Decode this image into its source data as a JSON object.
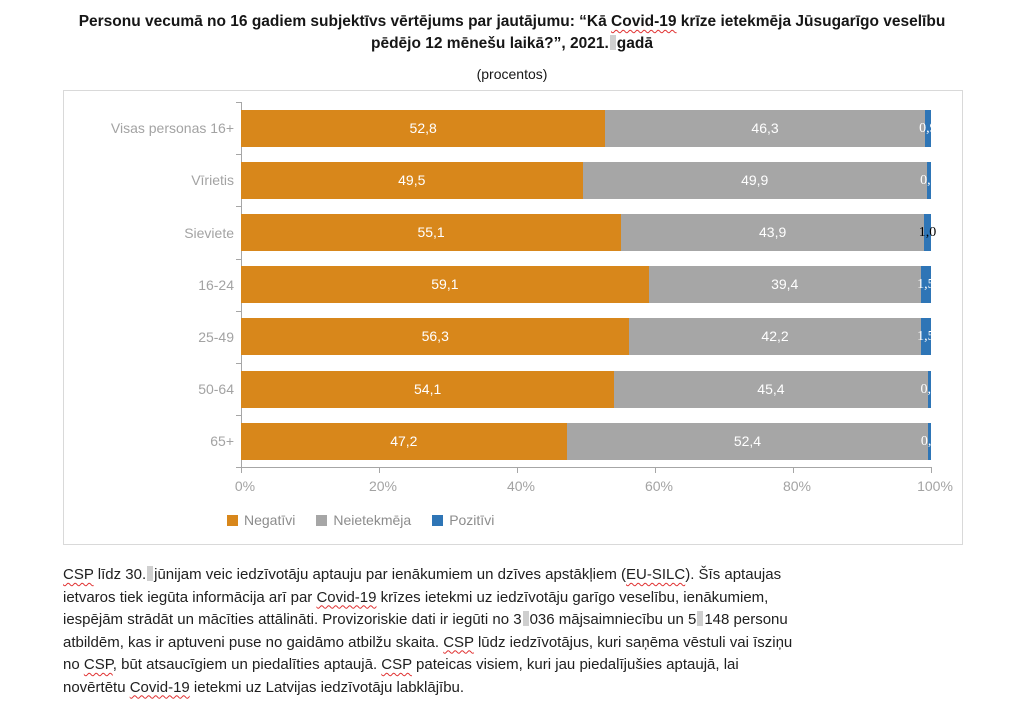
{
  "title": {
    "lines": [
      [
        {
          "t": "Personu vecumā no 16 gadiem subjektīvs vērtējums par jautājumu: “Kā "
        },
        {
          "t": "Covid-19",
          "spell": true
        },
        {
          "t": " krīze ietekmēja Jūsu"
        }
      ],
      [
        {
          "t": "garīgo veselību pēdējo 12 mēnešu laikā?”, 2021."
        },
        {
          "nbsp": true
        },
        {
          "t": "gadā"
        }
      ]
    ]
  },
  "subtitle": "(procentos)",
  "chart_data": {
    "type": "bar",
    "orientation": "horizontal",
    "stacked": true,
    "title": "Personu vecumā no 16 gadiem subjektīvs vērtējums par jautājumu: “Kā Covid-19 krīze ietekmēja Jūsu garīgo veselību pēdējo 12 mēnešu laikā?”, 2021. gadā",
    "subtitle": "(procentos)",
    "categories": [
      "Visas personas 16+",
      "Vīrietis",
      "Sieviete",
      "16-24",
      "25-49",
      "50-64",
      "65+"
    ],
    "series": [
      {
        "name": "Negatīvi",
        "color": "#d8871b",
        "label_color": "#ffffff",
        "values": [
          52.8,
          49.5,
          55.1,
          59.1,
          56.3,
          54.1,
          47.2
        ]
      },
      {
        "name": "Neietekmēja",
        "color": "#a6a6a6",
        "label_color": "#ffffff",
        "values": [
          46.3,
          49.9,
          43.9,
          39.4,
          42.2,
          45.4,
          52.4
        ]
      },
      {
        "name": "Pozitīvi",
        "color": "#2e75b6",
        "values": [
          0.9,
          0.6,
          1.0,
          1.5,
          1.5,
          0.5,
          0.4
        ],
        "label_colors": [
          "#ffffff",
          "#ffffff",
          "#000000",
          "#ffffff",
          "#ffffff",
          "#ffffff",
          "#ffffff"
        ]
      }
    ],
    "x_ticks": [
      "0%",
      "20%",
      "40%",
      "60%",
      "80%",
      "100%"
    ],
    "xlim": [
      0,
      100
    ],
    "decimal_separator": ",",
    "grid": false,
    "legend_position": "bottom-left",
    "legend": [
      "Negatīvi",
      "Neietekmēja",
      "Pozitīvi"
    ]
  },
  "footer": {
    "lines": [
      [
        {
          "t": "CSP",
          "spell": true
        },
        {
          "t": " līdz 30."
        },
        {
          "nbsp": true
        },
        {
          "t": "jūnijam veic iedzīvotāju aptauju par ienākumiem un dzīves apstākļiem ("
        },
        {
          "t": "EU-SILC",
          "spell": true
        },
        {
          "t": "). Šīs aptaujas"
        }
      ],
      [
        {
          "t": "ietvaros tiek iegūta informācija arī par "
        },
        {
          "t": "Covid-19",
          "spell": true
        },
        {
          "t": " krīzes ietekmi uz iedzīvotāju garīgo veselību, ienākumiem,"
        }
      ],
      [
        {
          "t": "iespējām strādāt un mācīties attālināti. Provizoriskie dati ir iegūti no 3"
        },
        {
          "nbsp": true
        },
        {
          "t": "036 mājsaimniecību un 5"
        },
        {
          "nbsp": true
        },
        {
          "t": "148 personu"
        }
      ],
      [
        {
          "t": "atbildēm, kas ir aptuveni puse no gaidāmo atbilžu skaita. "
        },
        {
          "t": "CSP",
          "spell": true
        },
        {
          "t": " lūdz iedzīvotājus, kuri saņēma vēstuli vai īsziņu"
        }
      ],
      [
        {
          "t": "no "
        },
        {
          "t": "CSP",
          "spell": true
        },
        {
          "t": ", būt atsaucīgiem un piedalīties aptaujā. "
        },
        {
          "t": "CSP",
          "spell": true
        },
        {
          "t": " pateicas visiem, kuri jau piedalījušies aptaujā, lai"
        }
      ],
      [
        {
          "t": "novērtētu "
        },
        {
          "t": "Covid-19",
          "spell": true
        },
        {
          "t": " ietekmi uz Latvijas iedzīvotāju labklājību."
        }
      ]
    ]
  },
  "colors": {
    "negative": "#d8871b",
    "neutral": "#a6a6a6",
    "positive": "#2e75b6",
    "axis": "#a6a6a6",
    "axis_text": "#a3a3a3",
    "legend_text": "#8c8c8c",
    "box_border": "#d9d9d9",
    "spellcheck": "#e03030"
  }
}
